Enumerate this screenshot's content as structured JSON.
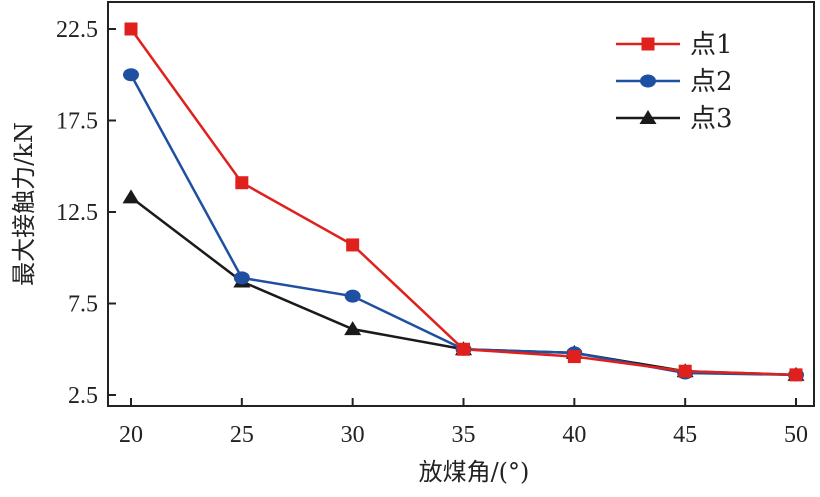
{
  "chart_data": {
    "type": "line",
    "title": "",
    "xlabel": "放煤角/(°)",
    "ylabel": "最大接触力/kN",
    "x": [
      20,
      25,
      30,
      35,
      40,
      45,
      50
    ],
    "xlim": [
      20,
      50
    ],
    "ylim": [
      2.5,
      23.5
    ],
    "yticks": [
      2.5,
      7.5,
      12.5,
      17.5,
      22.5
    ],
    "yticklabels": [
      "2.5",
      "7.5",
      "12.5",
      "17.5",
      "22.5"
    ],
    "xticks": [
      20,
      25,
      30,
      35,
      40,
      45,
      50
    ],
    "xticklabels": [
      "20",
      "25",
      "30",
      "35",
      "40",
      "45",
      "50"
    ],
    "grid": false,
    "legend_position": "top-right",
    "series": [
      {
        "name": "点1",
        "color": "#e0201c",
        "marker": "square",
        "values": [
          22.5,
          14.1,
          10.7,
          5.0,
          4.6,
          3.8,
          3.6
        ]
      },
      {
        "name": "点2",
        "color": "#1f4fa0",
        "marker": "circle",
        "values": [
          20.0,
          8.9,
          7.9,
          5.0,
          4.8,
          3.7,
          3.6
        ]
      },
      {
        "name": "点3",
        "color": "#1a1a1a",
        "marker": "triangle",
        "values": [
          13.3,
          8.7,
          6.1,
          5.0,
          4.8,
          3.8,
          3.6
        ]
      }
    ]
  }
}
